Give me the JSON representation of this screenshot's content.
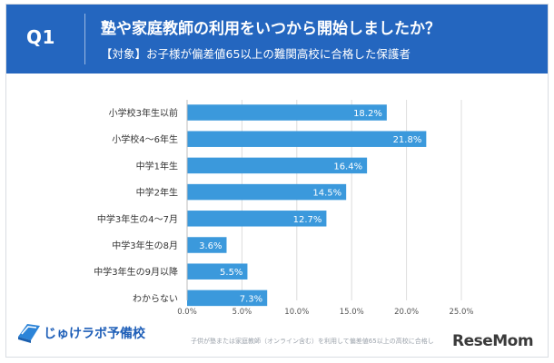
{
  "header": {
    "question_label": "Q1",
    "title": "塾や家庭教師の利用をいつから開始しましたか？",
    "subtitle": "【対象】お子様が偏差値65以上の難関高校に合格した保護者"
  },
  "chart_data": {
    "type": "bar",
    "orientation": "horizontal",
    "categories": [
      "小学校3年生以前",
      "小学校4〜6年生",
      "中学1年生",
      "中学2年生",
      "中学3年生の4〜7月",
      "中学3年生の8月",
      "中学3年生の9月以降",
      "わからない"
    ],
    "values": [
      18.2,
      21.8,
      16.4,
      14.5,
      12.7,
      3.6,
      5.5,
      7.3
    ],
    "value_labels": [
      "18.2%",
      "21.8%",
      "16.4%",
      "14.5%",
      "12.7%",
      "3.6%",
      "5.5%",
      "7.3%"
    ],
    "xlim": [
      0,
      25
    ],
    "xticks": [
      0,
      5,
      10,
      15,
      20,
      25
    ],
    "xtick_labels": [
      "0.0%",
      "5.0%",
      "10.0%",
      "15.0%",
      "20.0%",
      "25.0%"
    ],
    "grid": true,
    "bar_color": "#3b99dc"
  },
  "footer": {
    "logo_text": "じゅけラボ予備校",
    "footnote": "子供が塾または家庭教師（オンライン含む）を利用して偏差値65以上の高校に合格した",
    "watermark": "ReseMom"
  },
  "colors": {
    "header_bg": "#2466bf",
    "bar": "#3b99dc",
    "gridline": "#dcdcdc"
  }
}
